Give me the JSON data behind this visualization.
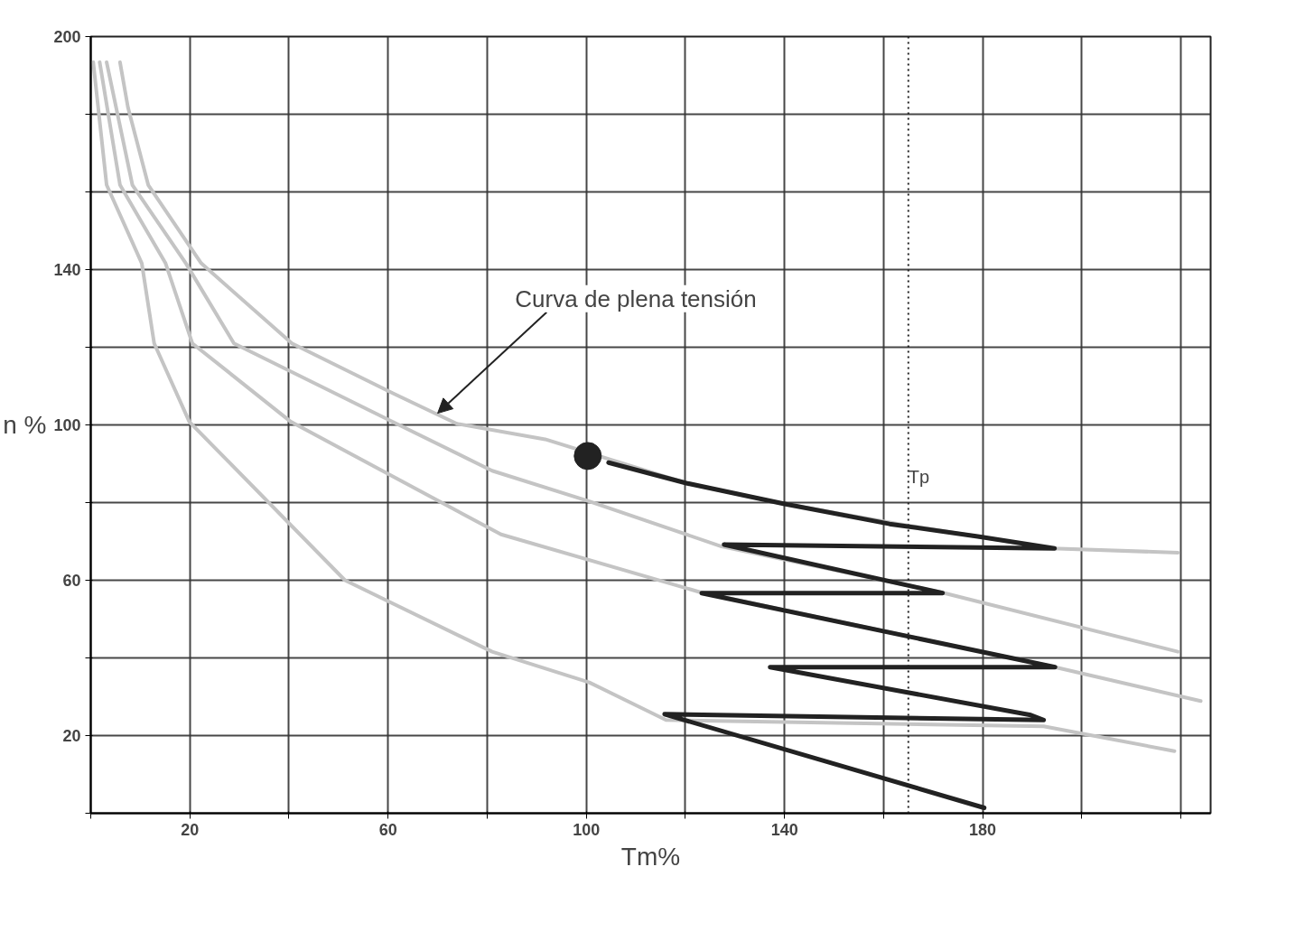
{
  "chart_data": {
    "type": "line",
    "xlabel": "Tm%",
    "ylabel": "n %",
    "xlim": [
      0,
      226
    ],
    "ylim": [
      0,
      200
    ],
    "xticks": [
      {
        "value": 0,
        "label": null
      },
      20,
      {
        "value": 40,
        "label": null
      },
      60,
      {
        "value": 80,
        "label": null
      },
      100,
      {
        "value": 120,
        "label": null
      },
      140,
      {
        "value": 160,
        "label": null
      },
      180,
      {
        "value": 200,
        "label": null
      },
      {
        "value": 220,
        "label": null
      }
    ],
    "yticks": [
      {
        "value": 0,
        "label": null
      },
      20,
      {
        "value": 40,
        "label": null
      },
      60,
      {
        "value": 80,
        "label": null
      },
      100,
      {
        "value": 120,
        "label": null
      },
      140,
      {
        "value": 160,
        "label": null
      },
      {
        "value": 180,
        "label": null
      },
      200
    ],
    "grid": true,
    "line_style": "solid",
    "series": [
      {
        "color": "#c4c4c4",
        "x": [
          5.9,
          7.5,
          11.6,
          22.3,
          40.6,
          60.9,
          73.9,
          91.7,
          120.2,
          139.8,
          163,
          194,
          219.4
        ],
        "values": [
          193.4,
          181.8,
          161.8,
          141.6,
          121,
          108.2,
          100.3,
          96.3,
          85,
          79.7,
          74.5,
          68.2,
          67.1
        ]
      },
      {
        "color": "#c4c4c4",
        "x": [
          3.2,
          8.4,
          19.2,
          28.9,
          60.9,
          81,
          100.6,
          127.3,
          171.9,
          219.4
        ],
        "values": [
          193.4,
          161.8,
          141.6,
          121,
          100.8,
          88.2,
          80.3,
          68.7,
          56.8,
          41.6
        ]
      },
      {
        "color": "#c4c4c4",
        "x": [
          1.8,
          5.9,
          15.1,
          20.5,
          40.4,
          82.8,
          123.3,
          194.6,
          224
        ],
        "values": [
          193.4,
          161.8,
          141.6,
          121,
          100.8,
          71.8,
          56.8,
          37.6,
          28.9
        ]
      },
      {
        "color": "#c4c4c4",
        "x": [
          0.5,
          3.2,
          10.3,
          12.8,
          19.9,
          51.3,
          81,
          100.6,
          116.1,
          192.3,
          218.7
        ],
        "values": [
          193.4,
          161.8,
          141.6,
          121,
          100.8,
          60,
          41.6,
          33.7,
          24,
          22.4,
          16
        ]
      },
      {
        "color": "#222222",
        "x": [
          104.5,
          120.2,
          139.8,
          161.2,
          179,
          194.5,
          127.8,
          171.9,
          123.3,
          194.6,
          137.1,
          189.7,
          192.3,
          115.8,
          180.3
        ],
        "values": [
          90.3,
          85,
          79.7,
          74.5,
          71.3,
          68.2,
          69.2,
          56.7,
          56.7,
          37.6,
          37.6,
          25.3,
          24,
          25.5,
          1.4
        ]
      },
      {
        "type": "scatter",
        "marker": "circle",
        "color": "#222222",
        "x": [
          100.3
        ],
        "values": [
          92
        ]
      }
    ],
    "ref_lines": [
      {
        "axis": "x",
        "value": 165,
        "label": "Tp",
        "line_style": "dotted",
        "color": "#222222"
      }
    ],
    "annotations": [
      {
        "text": "Curva de plena tensión",
        "x": 70,
        "y": 103
      }
    ]
  }
}
